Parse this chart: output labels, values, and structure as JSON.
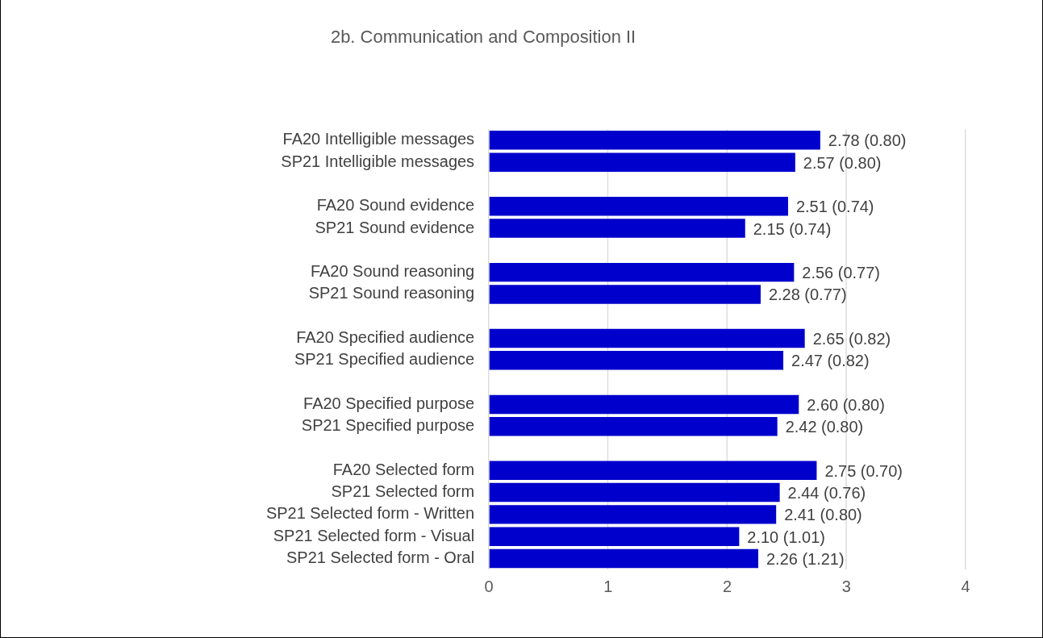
{
  "chart_data": {
    "type": "bar",
    "orientation": "horizontal",
    "title": "2b. Communication and Composition II",
    "categories": [
      "FA20 Intelligible messages",
      "SP21 Intelligible messages",
      null,
      "FA20 Sound evidence",
      "SP21 Sound evidence",
      null,
      "FA20 Sound reasoning",
      "SP21 Sound reasoning",
      null,
      "FA20 Specified audience",
      "SP21 Specified audience",
      null,
      "FA20 Specified purpose",
      "SP21 Specified purpose",
      null,
      "FA20 Selected form",
      "SP21 Selected form",
      "SP21 Selected form - Written",
      "SP21 Selected form - Visual",
      "SP21 Selected form - Oral"
    ],
    "values": [
      2.78,
      2.57,
      null,
      2.51,
      2.15,
      null,
      2.56,
      2.28,
      null,
      2.65,
      2.47,
      null,
      2.6,
      2.42,
      null,
      2.75,
      2.44,
      2.41,
      2.1,
      2.26
    ],
    "value_labels": [
      "2.78 (0.80)",
      "2.57 (0.80)",
      null,
      "2.51 (0.74)",
      "2.15 (0.74)",
      null,
      "2.56 (0.77)",
      "2.28 (0.77)",
      null,
      "2.65 (0.82)",
      "2.47 (0.82)",
      null,
      "2.60 (0.80)",
      "2.42 (0.80)",
      null,
      "2.75 (0.70)",
      "2.44 (0.76)",
      "2.41 (0.80)",
      "2.10 (1.01)",
      "2.26 (1.21)"
    ],
    "color": "#0000cc",
    "xlim": [
      0,
      4
    ],
    "xticks": [
      0,
      1,
      2,
      3,
      4
    ],
    "grid": "x",
    "legend": false
  }
}
